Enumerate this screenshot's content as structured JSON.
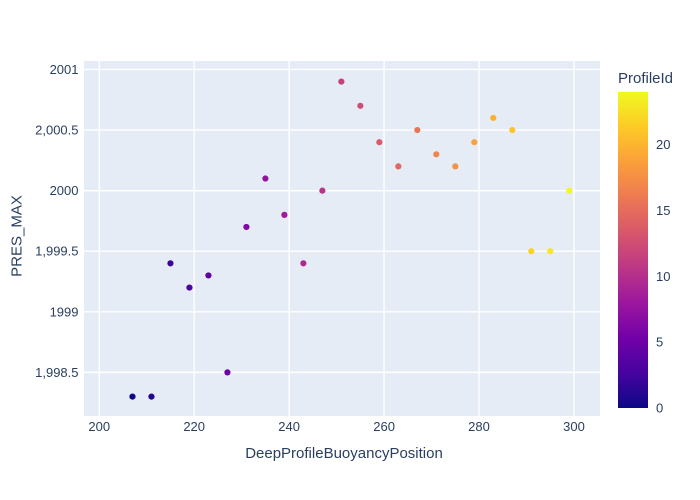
{
  "figure": {
    "background": "#ffffff",
    "plot_bg": "#e5ecf6",
    "grid_color": "#ffffff",
    "text_color": "#2a3f5f"
  },
  "chart_data": {
    "type": "scatter",
    "title": "",
    "xlabel": "DeepProfileBuoyancyPosition",
    "ylabel": "PRES_MAX",
    "color_label": "ProfileId",
    "grid": true,
    "legend_position": "right-colorbar",
    "x_range": [
      196.79,
      305.48
    ],
    "y_range": [
      1998.14,
      2001.07
    ],
    "x_ticks": [
      {
        "v": 200,
        "label": "200"
      },
      {
        "v": 220,
        "label": "220"
      },
      {
        "v": 240,
        "label": "240"
      },
      {
        "v": 260,
        "label": "260"
      },
      {
        "v": 280,
        "label": "280"
      },
      {
        "v": 300,
        "label": "300"
      }
    ],
    "y_ticks": [
      {
        "v": 2001,
        "label": "2001"
      },
      {
        "v": 2000.5,
        "label": "2,000.5"
      },
      {
        "v": 2000,
        "label": "2000"
      },
      {
        "v": 1999.5,
        "label": "1,999.5"
      },
      {
        "v": 1999,
        "label": "1999"
      },
      {
        "v": 1998.5,
        "label": "1,998.5"
      }
    ],
    "colorbar": {
      "title": "ProfileId",
      "range": [
        0,
        24
      ],
      "ticks": [
        {
          "v": 0,
          "label": "0"
        },
        {
          "v": 5,
          "label": "5"
        },
        {
          "v": 10,
          "label": "10"
        },
        {
          "v": 15,
          "label": "15"
        },
        {
          "v": 20,
          "label": "20"
        }
      ]
    },
    "colorscale": [
      [
        0.0,
        "#0d0887"
      ],
      [
        0.1111,
        "#46039f"
      ],
      [
        0.2222,
        "#7201a8"
      ],
      [
        0.3333,
        "#9c179e"
      ],
      [
        0.4444,
        "#bd3786"
      ],
      [
        0.5556,
        "#d8576b"
      ],
      [
        0.6667,
        "#ed7953"
      ],
      [
        0.7778,
        "#fb9f3a"
      ],
      [
        0.8889,
        "#fdca26"
      ],
      [
        1.0,
        "#f0f921"
      ]
    ],
    "points": [
      {
        "x": 207,
        "y": 1998.3,
        "id": 0
      },
      {
        "x": 211,
        "y": 1998.3,
        "id": 1
      },
      {
        "x": 215,
        "y": 1999.4,
        "id": 2
      },
      {
        "x": 219,
        "y": 1999.2,
        "id": 3
      },
      {
        "x": 223,
        "y": 1999.3,
        "id": 4
      },
      {
        "x": 227,
        "y": 1998.5,
        "id": 5
      },
      {
        "x": 231,
        "y": 1999.7,
        "id": 6
      },
      {
        "x": 235,
        "y": 2000.1,
        "id": 7
      },
      {
        "x": 239,
        "y": 1999.8,
        "id": 8
      },
      {
        "x": 243,
        "y": 1999.4,
        "id": 9
      },
      {
        "x": 247,
        "y": 2000.0,
        "id": 10
      },
      {
        "x": 251,
        "y": 2000.9,
        "id": 11
      },
      {
        "x": 255,
        "y": 2000.7,
        "id": 12
      },
      {
        "x": 259,
        "y": 2000.4,
        "id": 13
      },
      {
        "x": 263,
        "y": 2000.2,
        "id": 14
      },
      {
        "x": 267,
        "y": 2000.5,
        "id": 15
      },
      {
        "x": 271,
        "y": 2000.3,
        "id": 16
      },
      {
        "x": 275,
        "y": 2000.2,
        "id": 17
      },
      {
        "x": 279,
        "y": 2000.4,
        "id": 18
      },
      {
        "x": 283,
        "y": 2000.6,
        "id": 19
      },
      {
        "x": 287,
        "y": 2000.5,
        "id": 20
      },
      {
        "x": 291,
        "y": 1999.5,
        "id": 21
      },
      {
        "x": 295,
        "y": 1999.5,
        "id": 22
      },
      {
        "x": 299,
        "y": 2000.0,
        "id": 23
      }
    ]
  }
}
